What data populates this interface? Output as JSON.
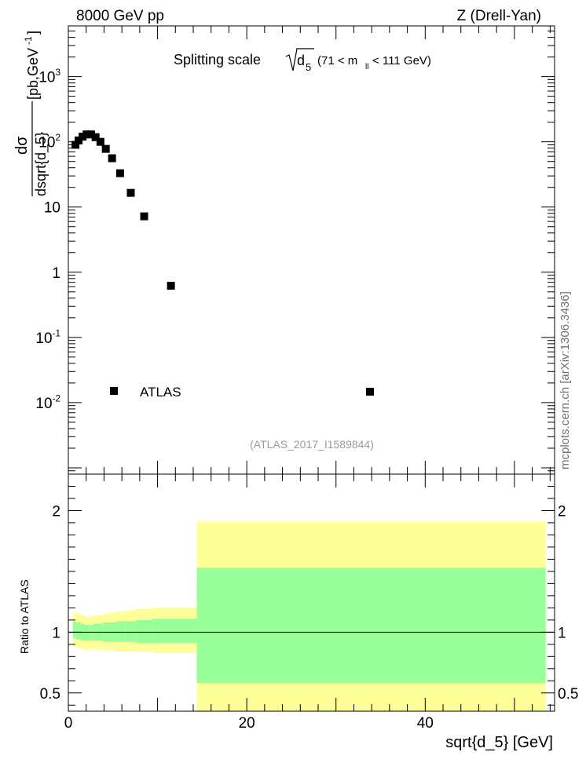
{
  "header": {
    "left_label": "8000 GeV pp",
    "right_label": "Z (Drell-Yan)"
  },
  "side_label": "mcplots.cern.ch [arXiv:1306.3436]",
  "analysis_id": "(ATLAS_2017_I1589844)",
  "chart_data": {
    "type": "scatter",
    "title": "Splitting scale",
    "title_formula": "√d5 (71 < m_ll < 111 GeV)",
    "xlabel": "sqrt{d_5} [GeV]",
    "ylabel": "dσ/dsqrt{d_5} [pb,GeV^-1]",
    "xlim": [
      0,
      54.5
    ],
    "main": {
      "yscale": "log",
      "ylim": [
        0.0008,
        6000
      ],
      "yticks": [
        {
          "value": 0.01,
          "label": "10^-2"
        },
        {
          "value": 0.1,
          "label": "10^-1"
        },
        {
          "value": 1,
          "label": "1"
        },
        {
          "value": 10,
          "label": "10"
        },
        {
          "value": 100,
          "label": "10^2"
        },
        {
          "value": 1000,
          "label": "10^3"
        }
      ],
      "series": [
        {
          "name": "ATLAS",
          "x": [
            0.8,
            1.15,
            1.6,
            2.05,
            2.55,
            3.05,
            3.6,
            4.2,
            4.9,
            5.8,
            7.0,
            8.5,
            11.5
          ],
          "y": [
            90,
            105,
            120,
            130,
            130,
            118,
            100,
            78,
            56,
            33,
            16.5,
            7.2,
            0.62
          ]
        }
      ],
      "legend": {
        "entries": [
          {
            "label": "ATLAS"
          }
        ],
        "placement": "bottom-left"
      }
    },
    "ratio": {
      "ylabel": "Ratio to ATLAS",
      "ylim": [
        0.35,
        2.3
      ],
      "yticks": [
        {
          "value": 0.5,
          "label": "0.5"
        },
        {
          "value": 1,
          "label": "1"
        },
        {
          "value": 2,
          "label": "2"
        }
      ],
      "reference_line": 1,
      "bands": [
        {
          "x0": 0.5,
          "x1": 0.9,
          "stat_lo": 0.95,
          "stat_hi": 1.09,
          "tot_lo": 0.88,
          "tot_hi": 1.16
        },
        {
          "x0": 0.9,
          "x1": 1.4,
          "stat_lo": 0.94,
          "stat_hi": 1.08,
          "tot_lo": 0.87,
          "tot_hi": 1.15
        },
        {
          "x0": 1.4,
          "x1": 1.8,
          "stat_lo": 0.93,
          "stat_hi": 1.07,
          "tot_lo": 0.86,
          "tot_hi": 1.14
        },
        {
          "x0": 1.8,
          "x1": 2.3,
          "stat_lo": 0.93,
          "stat_hi": 1.06,
          "tot_lo": 0.86,
          "tot_hi": 1.13
        },
        {
          "x0": 2.3,
          "x1": 2.8,
          "stat_lo": 0.93,
          "stat_hi": 1.06,
          "tot_lo": 0.86,
          "tot_hi": 1.13
        },
        {
          "x0": 2.8,
          "x1": 3.3,
          "stat_lo": 0.93,
          "stat_hi": 1.07,
          "tot_lo": 0.86,
          "tot_hi": 1.14
        },
        {
          "x0": 3.3,
          "x1": 3.9,
          "stat_lo": 0.93,
          "stat_hi": 1.07,
          "tot_lo": 0.86,
          "tot_hi": 1.14
        },
        {
          "x0": 3.9,
          "x1": 4.5,
          "stat_lo": 0.92,
          "stat_hi": 1.08,
          "tot_lo": 0.85,
          "tot_hi": 1.15
        },
        {
          "x0": 4.5,
          "x1": 5.3,
          "stat_lo": 0.92,
          "stat_hi": 1.08,
          "tot_lo": 0.85,
          "tot_hi": 1.16
        },
        {
          "x0": 5.3,
          "x1": 6.4,
          "stat_lo": 0.92,
          "stat_hi": 1.09,
          "tot_lo": 0.84,
          "tot_hi": 1.17
        },
        {
          "x0": 6.4,
          "x1": 7.6,
          "stat_lo": 0.92,
          "stat_hi": 1.09,
          "tot_lo": 0.84,
          "tot_hi": 1.18
        },
        {
          "x0": 7.6,
          "x1": 9.4,
          "stat_lo": 0.91,
          "stat_hi": 1.1,
          "tot_lo": 0.84,
          "tot_hi": 1.19
        },
        {
          "x0": 9.4,
          "x1": 14.4,
          "stat_lo": 0.91,
          "stat_hi": 1.11,
          "tot_lo": 0.83,
          "tot_hi": 1.2
        },
        {
          "x0": 14.4,
          "x1": 53.5,
          "stat_lo": 0.58,
          "stat_hi": 1.53,
          "tot_lo": 0.35,
          "tot_hi": 1.91
        }
      ]
    },
    "xticks": [
      {
        "value": 0,
        "label": "0"
      },
      {
        "value": 20,
        "label": "20"
      },
      {
        "value": 40,
        "label": "40"
      }
    ],
    "colors": {
      "marker": "#000000",
      "stat_band": "#99ff99",
      "total_band": "#ffff99",
      "analysis_id": "#999999",
      "side_label": "#707070"
    }
  }
}
